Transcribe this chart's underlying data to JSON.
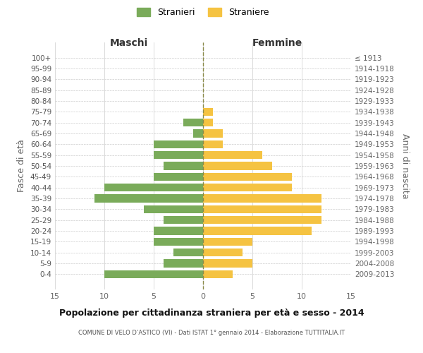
{
  "age_groups": [
    "100+",
    "95-99",
    "90-94",
    "85-89",
    "80-84",
    "75-79",
    "70-74",
    "65-69",
    "60-64",
    "55-59",
    "50-54",
    "45-49",
    "40-44",
    "35-39",
    "30-34",
    "25-29",
    "20-24",
    "15-19",
    "10-14",
    "5-9",
    "0-4"
  ],
  "birth_years": [
    "≤ 1913",
    "1914-1918",
    "1919-1923",
    "1924-1928",
    "1929-1933",
    "1934-1938",
    "1939-1943",
    "1944-1948",
    "1949-1953",
    "1954-1958",
    "1959-1963",
    "1964-1968",
    "1969-1973",
    "1974-1978",
    "1979-1983",
    "1984-1988",
    "1989-1993",
    "1994-1998",
    "1999-2003",
    "2004-2008",
    "2009-2013"
  ],
  "males": [
    0,
    0,
    0,
    0,
    0,
    0,
    2,
    1,
    5,
    5,
    4,
    5,
    10,
    11,
    6,
    4,
    5,
    5,
    3,
    4,
    10
  ],
  "females": [
    0,
    0,
    0,
    0,
    0,
    1,
    1,
    2,
    2,
    6,
    7,
    9,
    9,
    12,
    12,
    12,
    11,
    5,
    4,
    5,
    3
  ],
  "male_color": "#7aab5a",
  "female_color": "#f5c342",
  "grid_color": "#cccccc",
  "center_line_color": "#8b8b4a",
  "xlim": 15,
  "title": "Popolazione per cittadinanza straniera per età e sesso - 2014",
  "subtitle": "COMUNE DI VELO D’ASTICO (VI) - Dati ISTAT 1° gennaio 2014 - Elaborazione TUTTITALIA.IT",
  "ylabel_left": "Fasce di età",
  "ylabel_right": "Anni di nascita",
  "xlabel_left": "Maschi",
  "xlabel_right": "Femmine",
  "legend_male": "Stranieri",
  "legend_female": "Straniere",
  "background_color": "#ffffff"
}
